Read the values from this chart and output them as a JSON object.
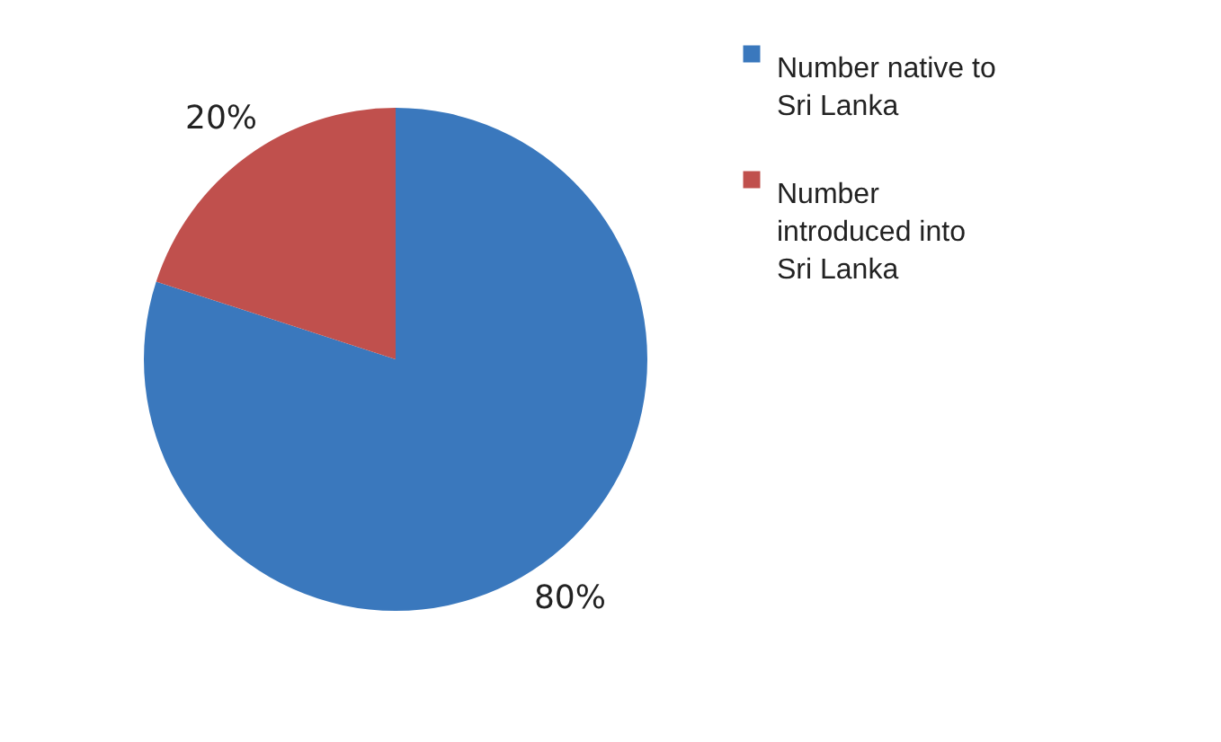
{
  "chart_data": {
    "type": "pie",
    "categories": [
      "Number native to Sri Lanka",
      "Number introduced into Sri Lanka"
    ],
    "values": [
      80,
      20
    ],
    "colors": [
      "#3a78bd",
      "#c0504d"
    ],
    "value_labels": [
      "80%",
      "20%"
    ],
    "legend": "right"
  }
}
